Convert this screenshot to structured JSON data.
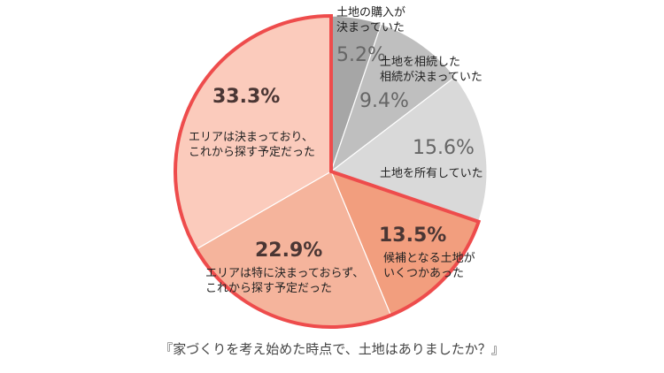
{
  "chart_data": {
    "type": "pie",
    "title": "",
    "caption": "『家づくりを考え始めた時点で、土地はありましたか？』",
    "start": "12 o'clock, clockwise",
    "slices": [
      {
        "label_lines": [
          "土地の購入が",
          "決まっていた"
        ],
        "value": 5.2,
        "pct_label": "5.2%",
        "color": "#a6a6a6",
        "highlight": false
      },
      {
        "label_lines": [
          "土地を相続した",
          "相続が決まっていた"
        ],
        "value": 9.4,
        "pct_label": "9.4%",
        "color": "#bfbfbf",
        "highlight": false
      },
      {
        "label_lines": [
          "土地を所有していた"
        ],
        "value": 15.6,
        "pct_label": "15.6%",
        "color": "#d9d9d9",
        "highlight": false
      },
      {
        "label_lines": [
          "候補となる土地が",
          "いくつかあった"
        ],
        "value": 13.5,
        "pct_label": "13.5%",
        "color": "#f29e7e",
        "highlight": true
      },
      {
        "label_lines": [
          "エリアは特に決まっておらず、",
          "これから探す予定だった"
        ],
        "value": 22.9,
        "pct_label": "22.9%",
        "color": "#f5b49c",
        "highlight": true
      },
      {
        "label_lines": [
          "エリアは決まっており、",
          "これから探す予定だった"
        ],
        "value": 33.3,
        "pct_label": "33.3%",
        "color": "#fbcbbc",
        "highlight": true
      }
    ],
    "highlight_border_color": "#ee4c4c"
  }
}
